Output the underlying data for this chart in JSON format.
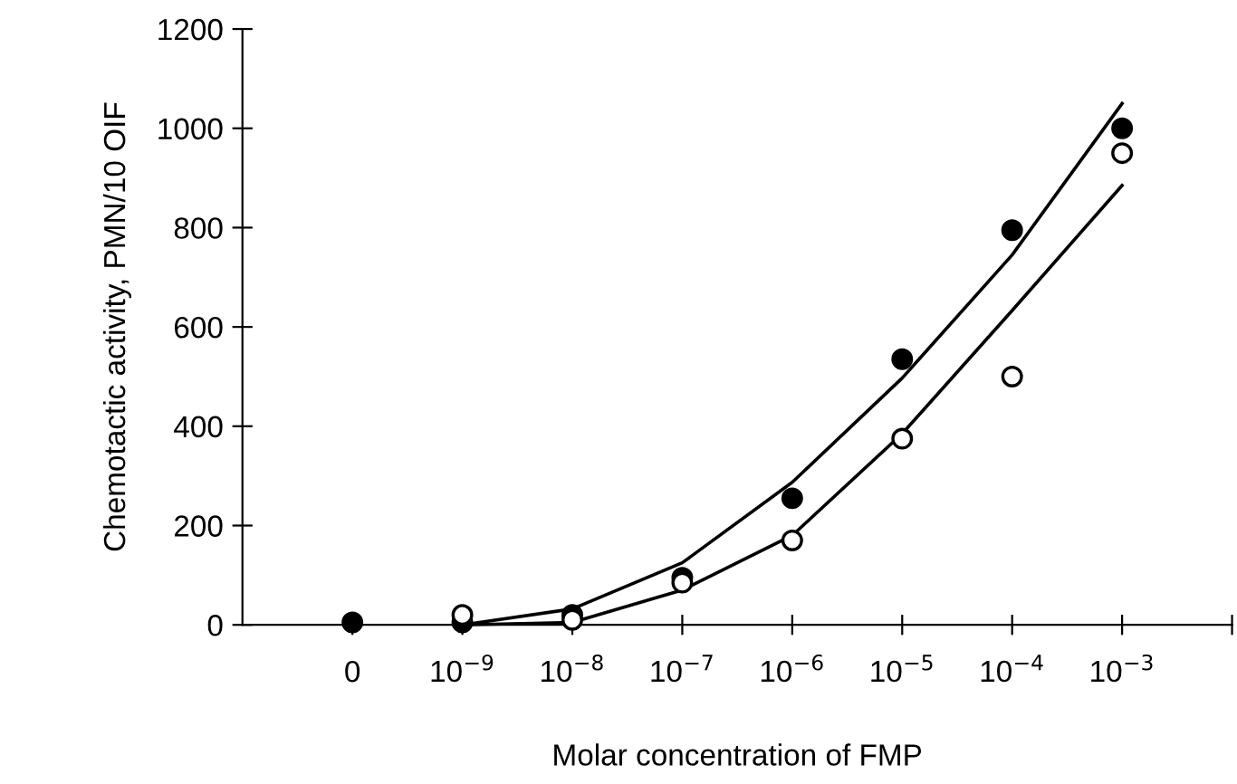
{
  "chart_data": {
    "type": "scatter",
    "xlabel": "Molar concentration of FMP",
    "ylabel": "Chemotactic activity, PMN/10 OIF",
    "categories": [
      "0",
      "10$^{−9}$",
      "10$^{−8}$",
      "10$^{−7}$",
      "10$^{−6}$",
      "10$^{−5}$",
      "10$^{−4}$",
      "10$^{−3}$"
    ],
    "ylim": [
      0,
      1200
    ],
    "yticks": [
      0,
      200,
      400,
      600,
      800,
      1000,
      1200
    ],
    "marker": "circle",
    "series": [
      {
        "color": "#000000",
        "values": [
          5,
          5,
          20,
          95,
          255,
          535,
          795,
          1000
        ]
      },
      {
        "color": "#ffffff",
        "values": [
          null,
          20,
          10,
          85,
          170,
          375,
          500,
          950
        ]
      },
      {
        "type": "line",
        "color": "#000000",
        "marker": "none",
        "values": [
          null,
          0,
          32,
          125,
          287,
          497,
          745,
          1050
        ]
      },
      {
        "type": "line",
        "color": "#000000",
        "marker": "none",
        "values": [
          null,
          0,
          5,
          70,
          180,
          385,
          633,
          885
        ]
      }
    ]
  }
}
